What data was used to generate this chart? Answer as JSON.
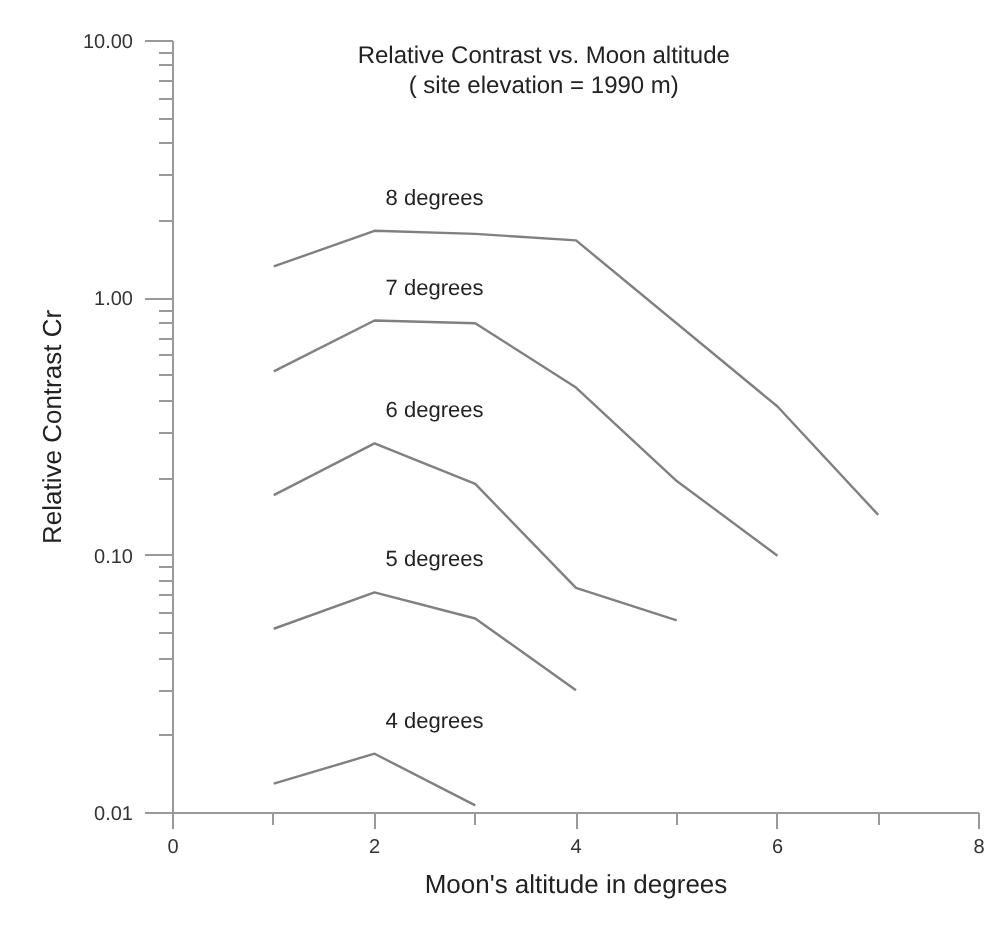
{
  "chart_data": {
    "type": "line",
    "title": "Relative Contrast vs. Moon altitude",
    "subtitle": "( site elevation = 1990 m)",
    "xlabel": "Moon's altitude in degrees",
    "ylabel": "Relative Contrast Cr",
    "log": "y",
    "xlim": [
      0,
      8
    ],
    "xticks": [
      0,
      2,
      4,
      6,
      8
    ],
    "ylim": [
      0.01,
      10
    ],
    "yticks": [
      {
        "value": 0.01,
        "label": "0.01"
      },
      {
        "value": 0.1,
        "label": "0.10"
      },
      {
        "value": 1,
        "label": "1.00"
      },
      {
        "value": 10,
        "label": "10.00"
      }
    ],
    "grid": false,
    "marker": "none",
    "line_style": "solid",
    "series": [
      {
        "name": "8 degrees",
        "color": "#808080",
        "x": [
          1,
          2,
          3,
          4,
          6,
          7
        ],
        "values": [
          1.33,
          1.83,
          1.78,
          1.68,
          0.38,
          0.144
        ]
      },
      {
        "name": "7 degrees",
        "color": "#808080",
        "x": [
          1,
          2,
          3,
          4,
          5,
          6
        ],
        "values": [
          0.52,
          0.82,
          0.8,
          0.45,
          0.195,
          0.1
        ]
      },
      {
        "name": "6 degrees",
        "color": "#808080",
        "x": [
          1,
          2,
          3,
          4,
          5
        ],
        "values": [
          0.172,
          0.273,
          0.19,
          0.075,
          0.056
        ]
      },
      {
        "name": "5 degrees",
        "color": "#808080",
        "x": [
          1,
          2,
          3,
          4
        ],
        "values": [
          0.052,
          0.072,
          0.057,
          0.03
        ]
      },
      {
        "name": "4 degrees",
        "color": "#808080",
        "x": [
          1,
          2,
          3
        ],
        "values": [
          0.013,
          0.017,
          0.0107
        ]
      }
    ]
  }
}
